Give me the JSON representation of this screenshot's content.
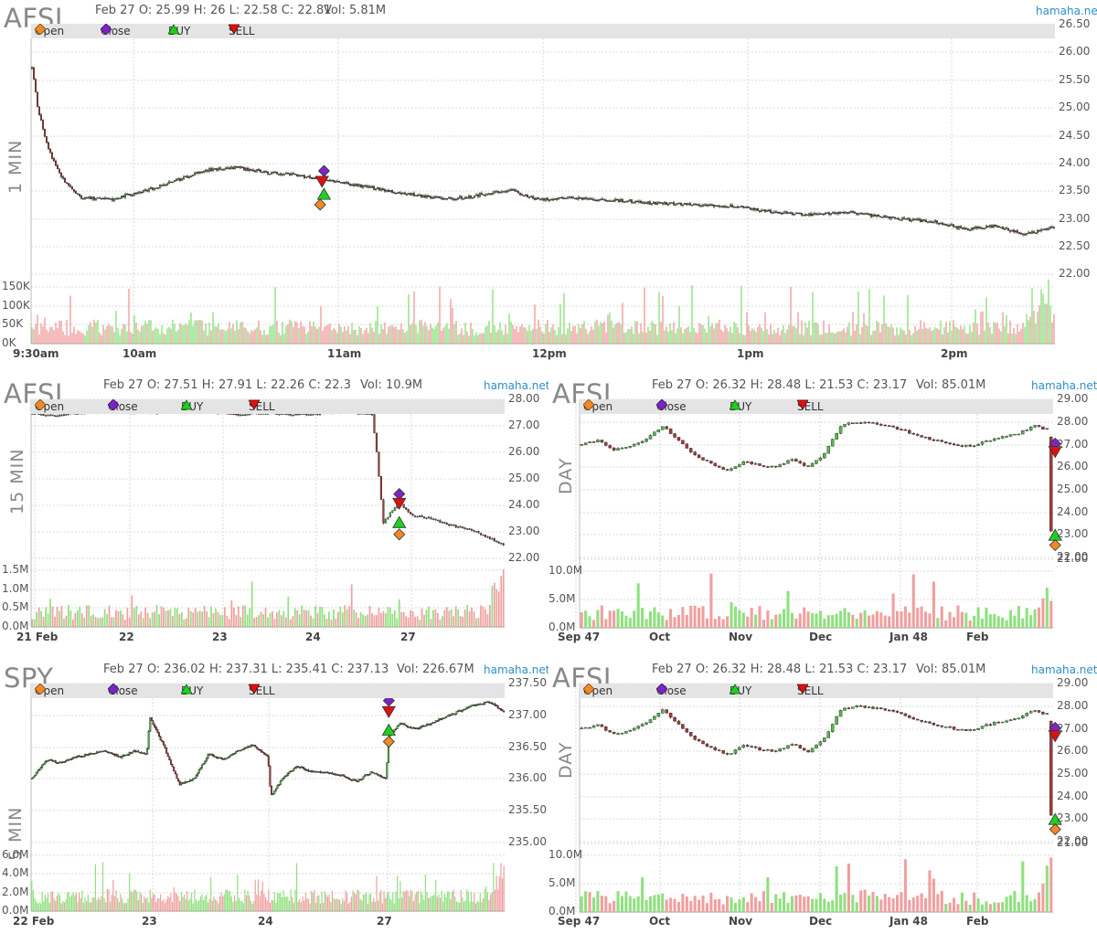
{
  "colors": {
    "up": "#55b94a",
    "down": "#a33b3b",
    "vol_up": "#90e080",
    "vol_down": "#f0a0a0",
    "open": "#f08a24",
    "close": "#7a25c4",
    "buy": "#1ed11e",
    "sell": "#dd1111",
    "grid": "#d8d8d8",
    "legend_bg": "#e4e4e4",
    "brand": "#2b8fc7"
  },
  "legend_icons": [
    "orange-diamond-icon",
    "purple-diamond-icon",
    "green-triangle-up-icon",
    "red-triangle-down-icon"
  ],
  "panels": [
    {
      "id": "p1",
      "symbol": "AFSI",
      "timeframe": "1 MIN",
      "ohlc": "Feb 27 O: 25.99 H: 26 L: 22.58 C: 22.81",
      "volume": "Vol: 5.81M",
      "site": "hamaha.net",
      "legend": [
        "Open",
        "Close",
        "BUY",
        "SELL"
      ],
      "y_ticks": [
        "26.50",
        "26.00",
        "25.50",
        "25.00",
        "24.50",
        "24.00",
        "23.50",
        "23.00",
        "22.50",
        "22.00"
      ],
      "vol_ticks": [
        "150K",
        "100K",
        "50K",
        "0K"
      ],
      "x_ticks": [
        "9:30am",
        "10am",
        "11am",
        "12pm",
        "1pm",
        "2pm"
      ]
    },
    {
      "id": "p2",
      "symbol": "AFSI",
      "timeframe": "15 MIN",
      "ohlc": "Feb 27 O: 27.51 H: 27.91 L: 22.26 C: 22.3",
      "volume": "Vol: 10.9M",
      "site": "hamaha.net",
      "legend": [
        "Open",
        "Close",
        "BUY",
        "SELL"
      ],
      "y_ticks": [
        "28.00",
        "27.00",
        "26.00",
        "25.00",
        "24.00",
        "23.00",
        "22.00"
      ],
      "vol_ticks": [
        "1.5M",
        "1.0M",
        "0.5M",
        "0.0M"
      ],
      "x_ticks": [
        "21 Feb",
        "22",
        "23",
        "24",
        "27"
      ]
    },
    {
      "id": "p3",
      "symbol": "AFSI",
      "timeframe": "DAY",
      "ohlc": "Feb 27 O: 26.32 H: 28.48 L: 21.53 C: 23.17",
      "volume": "Vol: 85.01M",
      "site": "hamaha.net",
      "legend": [
        "Open",
        "Close",
        "BUY",
        "SELL"
      ],
      "y_ticks": [
        "29.00",
        "28.00",
        "27.00",
        "26.00",
        "25.00",
        "24.00",
        "23.00",
        "22.00",
        "21.00"
      ],
      "vol_ticks": [
        "10.0M",
        "5.0M",
        "0.0M"
      ],
      "x_ticks": [
        "Sep 47",
        "Oct",
        "Nov",
        "Dec",
        "Jan 48",
        "Feb"
      ]
    },
    {
      "id": "p4",
      "symbol": "SPY",
      "timeframe": "5 MIN",
      "ohlc": "Feb 27 O: 236.02 H: 237.31 L: 235.41 C: 237.13",
      "volume": "Vol: 226.67M",
      "site": "hamaha.net",
      "legend": [
        "Open",
        "Close",
        "BUY",
        "SELL"
      ],
      "y_ticks": [
        "237.50",
        "237.00",
        "236.50",
        "236.00",
        "235.50",
        "235.00"
      ],
      "vol_ticks": [
        "6.0M",
        "4.0M",
        "2.0M",
        "0.0M"
      ],
      "x_ticks": [
        "22 Feb",
        "23",
        "24",
        "27"
      ]
    },
    {
      "id": "p5",
      "symbol": "AFSI",
      "timeframe": "DAY",
      "ohlc": "Feb 27 O: 26.32 H: 28.48 L: 21.53 C: 23.17",
      "volume": "Vol: 85.01M",
      "site": "hamaha.net",
      "legend": [
        "Open",
        "Close",
        "BUY",
        "SELL"
      ],
      "y_ticks": [
        "29.00",
        "28.00",
        "27.00",
        "26.00",
        "25.00",
        "24.00",
        "23.00",
        "22.00",
        "21.00"
      ],
      "vol_ticks": [
        "10.0M",
        "5.0M",
        "0.0M"
      ],
      "x_ticks": [
        "Sep 47",
        "Oct",
        "Nov",
        "Dec",
        "Jan 48",
        "Feb"
      ]
    }
  ],
  "chart_data": [
    {
      "type": "candlestick",
      "panel": "p1",
      "title": "AFSI 1 MIN",
      "ylim": [
        21.85,
        26.6
      ],
      "vol_ylim": [
        0,
        160000
      ],
      "series": [
        {
          "name": "price_path",
          "x": [
            0,
            3,
            8,
            15,
            25,
            40,
            60,
            75,
            90,
            105,
            120,
            135,
            150,
            165,
            180,
            200,
            215,
            225,
            230,
            245,
            260,
            275,
            285,
            295,
            305,
            320,
            340,
            360,
            380,
            400,
            420,
            440,
            450,
            465,
            480,
            495,
            510,
            525
          ],
          "values": [
            26.0,
            25.2,
            24.4,
            23.8,
            23.4,
            23.35,
            23.55,
            23.75,
            23.95,
            24.0,
            23.9,
            23.85,
            23.75,
            23.65,
            23.55,
            23.42,
            23.38,
            23.4,
            23.45,
            23.55,
            23.35,
            23.38,
            23.36,
            23.34,
            23.33,
            23.28,
            23.25,
            23.22,
            23.1,
            23.05,
            23.1,
            22.98,
            22.95,
            22.9,
            22.75,
            22.82,
            22.65,
            22.8
          ]
        }
      ],
      "markers": [
        {
          "type": "Close",
          "x": 150,
          "y": 23.93
        },
        {
          "type": "SELL",
          "x": 149,
          "y": 23.73
        },
        {
          "type": "BUY",
          "x": 150,
          "y": 23.45
        },
        {
          "type": "Open",
          "x": 148,
          "y": 23.25
        }
      ]
    },
    {
      "type": "candlestick",
      "panel": "p2",
      "title": "AFSI 15 MIN",
      "ylim": [
        21.8,
        28.1
      ],
      "vol_ylim": [
        0,
        1600000
      ],
      "series": [
        {
          "name": "price_path",
          "x": [
            0,
            5,
            10,
            20,
            30,
            40,
            50,
            60,
            70,
            80,
            90,
            100,
            110,
            120,
            130,
            140,
            150,
            152,
            155,
            158,
            162,
            168,
            175,
            185,
            195,
            208
          ],
          "values": [
            27.55,
            27.5,
            27.45,
            27.55,
            27.58,
            27.6,
            27.55,
            27.6,
            27.62,
            27.58,
            27.5,
            27.55,
            27.52,
            27.5,
            27.55,
            27.6,
            27.5,
            26.0,
            23.2,
            23.6,
            24.0,
            23.5,
            23.4,
            23.1,
            22.9,
            22.35
          ]
        }
      ],
      "markers": [
        {
          "type": "Close",
          "x": 162,
          "y": 24.35
        },
        {
          "type": "SELL",
          "x": 162,
          "y": 24.0
        },
        {
          "type": "BUY",
          "x": 162,
          "y": 23.2
        },
        {
          "type": "Open",
          "x": 162,
          "y": 22.75
        }
      ]
    },
    {
      "type": "candlestick",
      "panel": "p3",
      "title": "AFSI DAY",
      "ylim": [
        20.7,
        29.2
      ],
      "vol_ylim": [
        0,
        11000000
      ],
      "series": [
        {
          "name": "price_path",
          "x": [
            0,
            4,
            8,
            12,
            16,
            20,
            24,
            28,
            32,
            36,
            40,
            44,
            48,
            52,
            56,
            60,
            64,
            68,
            72,
            76,
            80,
            84,
            88,
            92,
            96,
            100,
            104,
            108,
            112,
            114,
            116
          ],
          "values": [
            26.8,
            27.0,
            26.5,
            26.7,
            27.1,
            27.8,
            27.0,
            26.2,
            25.8,
            25.4,
            25.9,
            25.7,
            25.6,
            26.0,
            25.6,
            26.3,
            27.8,
            28.0,
            27.9,
            27.8,
            27.5,
            27.2,
            27.0,
            26.8,
            26.7,
            27.0,
            27.2,
            27.4,
            27.8,
            27.6,
            27.7
          ]
        },
        {
          "name": "final",
          "x": [
            116
          ],
          "values": [
            22.2
          ]
        }
      ],
      "markers": [
        {
          "type": "Close",
          "x": 117,
          "y": 26.85
        },
        {
          "type": "SELL",
          "x": 117,
          "y": 26.45
        },
        {
          "type": "BUY",
          "x": 117,
          "y": 21.95
        },
        {
          "type": "Open",
          "x": 117,
          "y": 21.45
        }
      ]
    },
    {
      "type": "candlestick",
      "panel": "p4",
      "title": "SPY 5 MIN",
      "ylim": [
        234.95,
        237.55
      ],
      "vol_ylim": [
        0,
        6500000
      ],
      "series": [
        {
          "name": "price_path",
          "x": [
            0,
            10,
            20,
            30,
            40,
            50,
            60,
            70,
            78,
            80,
            90,
            100,
            110,
            120,
            130,
            140,
            150,
            160,
            162,
            170,
            180,
            190,
            200,
            210,
            220,
            230,
            240,
            242,
            250,
            260,
            270,
            280,
            290,
            300,
            310,
            320
          ],
          "values": [
            236.0,
            236.3,
            236.25,
            236.35,
            236.4,
            236.45,
            236.35,
            236.45,
            236.4,
            237.0,
            236.5,
            235.9,
            236.0,
            236.4,
            236.3,
            236.45,
            236.55,
            236.35,
            235.7,
            236.0,
            236.2,
            236.1,
            236.1,
            236.05,
            235.95,
            236.1,
            236.0,
            236.7,
            236.9,
            236.8,
            236.9,
            237.0,
            237.1,
            237.2,
            237.25,
            237.1
          ]
        }
      ],
      "markers": [
        {
          "type": "Close",
          "x": 242,
          "y": 237.27
        },
        {
          "type": "SELL",
          "x": 242,
          "y": 237.1
        },
        {
          "type": "BUY",
          "x": 242,
          "y": 236.78
        },
        {
          "type": "Open",
          "x": 242,
          "y": 236.6
        }
      ]
    },
    {
      "type": "candlestick",
      "panel": "p5",
      "title": "AFSI DAY",
      "ylim": [
        20.7,
        29.2
      ],
      "vol_ylim": [
        0,
        11000000
      ],
      "series": [
        {
          "name": "price_path",
          "x": [
            0,
            4,
            8,
            12,
            16,
            20,
            24,
            28,
            32,
            36,
            40,
            44,
            48,
            52,
            56,
            60,
            64,
            68,
            72,
            76,
            80,
            84,
            88,
            92,
            96,
            100,
            104,
            108,
            112,
            114,
            116
          ],
          "values": [
            26.8,
            27.0,
            26.5,
            26.7,
            27.1,
            27.8,
            27.0,
            26.2,
            25.8,
            25.4,
            25.9,
            25.7,
            25.6,
            26.0,
            25.6,
            26.3,
            27.8,
            28.0,
            27.9,
            27.8,
            27.5,
            27.2,
            27.0,
            26.8,
            26.7,
            27.0,
            27.2,
            27.4,
            27.8,
            27.6,
            27.7
          ]
        },
        {
          "name": "final",
          "x": [
            116
          ],
          "values": [
            22.2
          ]
        }
      ],
      "markers": [
        {
          "type": "Close",
          "x": 117,
          "y": 26.85
        },
        {
          "type": "SELL",
          "x": 117,
          "y": 26.45
        },
        {
          "type": "BUY",
          "x": 117,
          "y": 21.95
        },
        {
          "type": "Open",
          "x": 117,
          "y": 21.45
        }
      ]
    }
  ]
}
